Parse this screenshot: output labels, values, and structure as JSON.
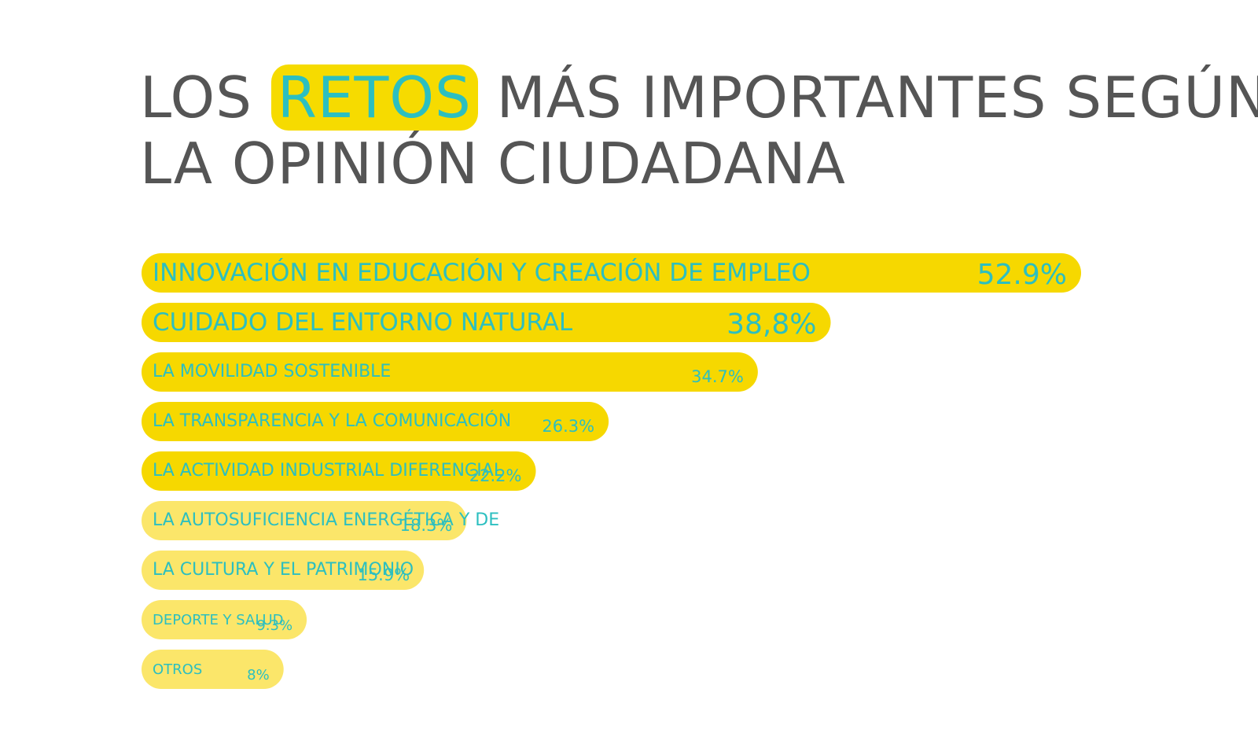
{
  "title": {
    "line1_pre": "LOS",
    "line1_highlight": "RETOS",
    "line1_post": "MÁS IMPORTANTES SEGÚN",
    "line2": "LA OPINIÓN CIUDADANA"
  },
  "colors": {
    "bar_strong": "#f6d800",
    "bar_light": "#fbe66a",
    "text_teal": "#2cbfc0",
    "title_gray": "#555555"
  },
  "chart_data": {
    "type": "bar",
    "orientation": "horizontal",
    "title": "LOS RETOS MÁS IMPORTANTES SEGÚN LA OPINIÓN CIUDADANA",
    "unit": "%",
    "categories": [
      "INNOVACIÓN EN EDUCACIÓN Y CREACIÓN DE EMPLEO",
      "CUIDADO DEL ENTORNO NATURAL",
      "LA MOVILIDAD SOSTENIBLE",
      "LA TRANSPARENCIA Y LA COMUNICACIÓN",
      "LA ACTIVIDAD INDUSTRIAL DIFERENCIAL",
      "LA AUTOSUFICIENCIA ENERGÉTICA Y DE",
      "LA CULTURA Y EL PATRIMONIO",
      "DEPORTE Y SALUD",
      "OTROS"
    ],
    "values": [
      52.9,
      38.8,
      34.7,
      26.3,
      22.2,
      18.3,
      15.9,
      9.3,
      8
    ],
    "value_labels": [
      "52.9%",
      "38,8%",
      "34.7%",
      "26.3%",
      "22.2%",
      "18.3%",
      "15.9%",
      "9.3%",
      "8%"
    ],
    "emphasis": [
      "strong",
      "strong",
      "strong",
      "strong",
      "strong",
      "light",
      "light",
      "light",
      "light"
    ],
    "xlim": [
      0,
      52.9
    ],
    "grid": false,
    "legend": "none"
  }
}
